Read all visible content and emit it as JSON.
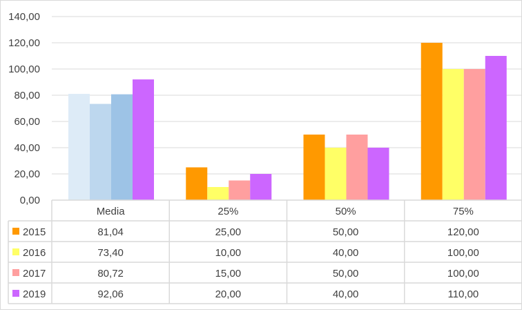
{
  "chart_data": {
    "type": "bar",
    "categories": [
      "Media",
      "25%",
      "50%",
      "75%"
    ],
    "ylim": [
      0,
      140
    ],
    "ytick_step": 20,
    "ytick_labels": [
      "0,00",
      "20,00",
      "40,00",
      "60,00",
      "80,00",
      "100,00",
      "120,00",
      "140,00"
    ],
    "grid": true,
    "legend": "data-table",
    "series": [
      {
        "name": "2015",
        "color": "#FF9900",
        "values": [
          81.04,
          25.0,
          50.0,
          120.0
        ],
        "labels": [
          "81,04",
          "25,00",
          "50,00",
          "120,00"
        ]
      },
      {
        "name": "2016",
        "color": "#FFFF66",
        "values": [
          73.4,
          10.0,
          40.0,
          100.0
        ],
        "labels": [
          "73,40",
          "10,00",
          "40,00",
          "100,00"
        ]
      },
      {
        "name": "2017",
        "color": "#FF9F9F",
        "values": [
          80.72,
          15.0,
          50.0,
          100.0
        ],
        "labels": [
          "80,72",
          "15,00",
          "50,00",
          "100,00"
        ]
      },
      {
        "name": "2019",
        "color": "#CC66FF",
        "values": [
          92.06,
          20.0,
          40.0,
          110.0
        ],
        "labels": [
          "92,06",
          "20,00",
          "40,00",
          "110,00"
        ]
      }
    ],
    "first_category_colors": [
      "#DDEBF7",
      "#BDD7EE",
      "#9DC3E6",
      "#CC66FF"
    ]
  }
}
